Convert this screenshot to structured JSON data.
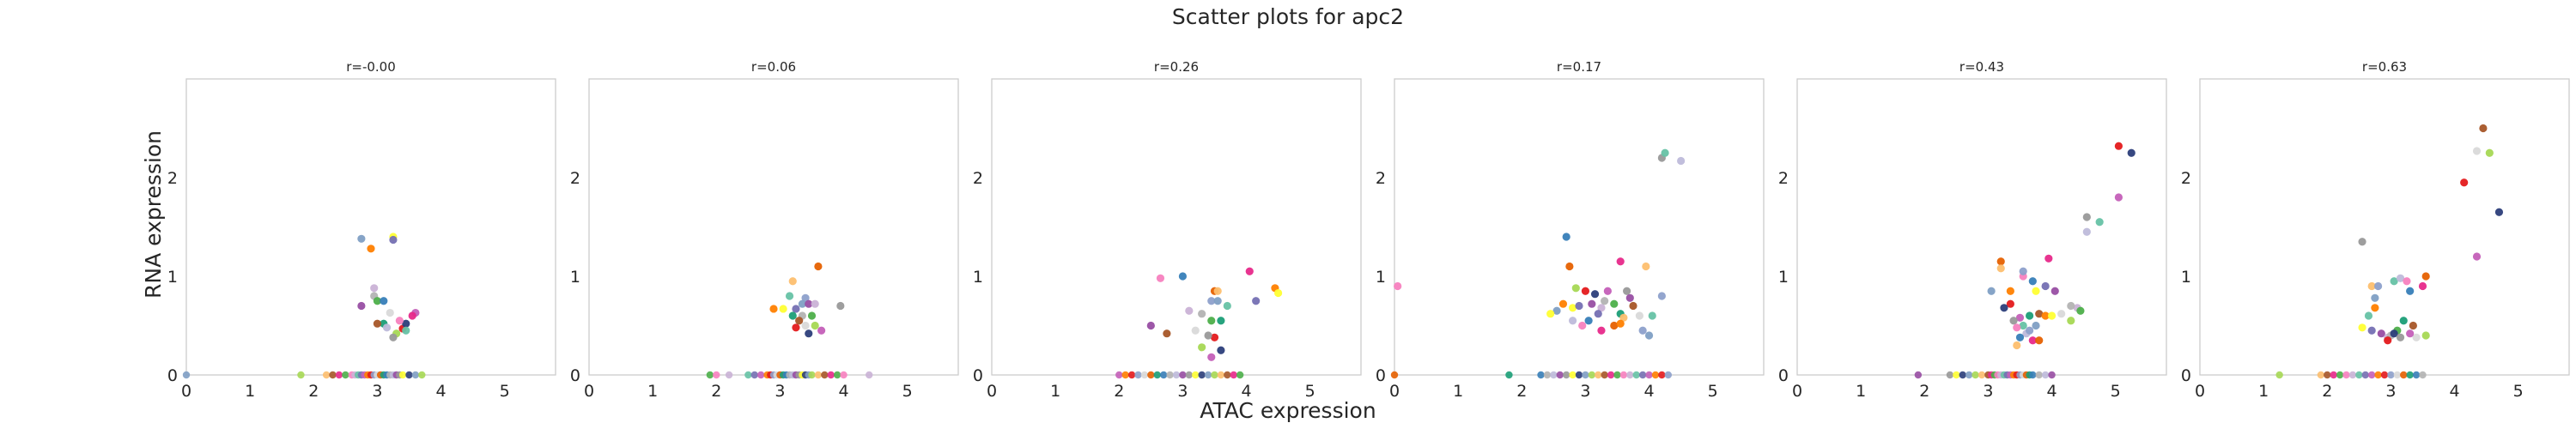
{
  "chart_data": {
    "type": "scatter",
    "title": "Scatter plots for apc2",
    "xlabel": "ATAC expression",
    "ylabel": "RNA expression",
    "xlim": [
      0,
      5.8
    ],
    "ylim": [
      0,
      3.0
    ],
    "xticks": [
      0,
      1,
      2,
      3,
      4,
      5
    ],
    "yticks": [
      0,
      1,
      2
    ],
    "grid": false,
    "palette": [
      "#7f9fc4",
      "#4daf4a",
      "#c45fb8",
      "#e66101",
      "#984ea3",
      "#a6d854",
      "#f781bf",
      "#ff7f00",
      "#1b9e77",
      "#999999",
      "#fdbf6f",
      "#cab2d6",
      "#e41a1c",
      "#377eb8",
      "#ffff33",
      "#a65628",
      "#66c2a5",
      "#8da0cb",
      "#b3b3b3",
      "#2c3e7a",
      "#e7298a",
      "#7570b3",
      "#d9d9d9",
      "#bebada"
    ],
    "panels": [
      {
        "title": "r=-0.00",
        "points": [
          [
            2.75,
            1.38
          ],
          [
            2.9,
            1.28
          ],
          [
            3.25,
            1.4
          ],
          [
            3.25,
            1.37
          ],
          [
            2.75,
            0.7
          ],
          [
            2.95,
            0.88
          ],
          [
            2.95,
            0.8
          ],
          [
            3.0,
            0.75
          ],
          [
            3.1,
            0.52
          ],
          [
            3.0,
            0.52
          ],
          [
            3.2,
            0.63
          ],
          [
            3.3,
            0.42
          ],
          [
            3.4,
            0.47
          ],
          [
            3.45,
            0.52
          ],
          [
            3.6,
            0.63
          ],
          [
            3.25,
            0.38
          ],
          [
            3.45,
            0.45
          ],
          [
            3.15,
            0.48
          ],
          [
            3.35,
            0.55
          ],
          [
            3.1,
            0.75
          ],
          [
            3.55,
            0.6
          ]
        ],
        "zeros": [
          0.0,
          1.8,
          2.2,
          2.3,
          2.4,
          2.5,
          2.6,
          2.65,
          2.7,
          2.75,
          2.8,
          2.85,
          2.9,
          2.95,
          3.0,
          3.05,
          3.1,
          3.15,
          3.2,
          3.25,
          3.3,
          3.35,
          3.4,
          3.5,
          3.6,
          3.7
        ]
      },
      {
        "title": "r=0.06",
        "points": [
          [
            3.6,
            1.1
          ],
          [
            3.2,
            0.95
          ],
          [
            3.4,
            0.78
          ],
          [
            3.35,
            0.72
          ],
          [
            2.9,
            0.67
          ],
          [
            3.05,
            0.67
          ],
          [
            3.25,
            0.67
          ],
          [
            3.45,
            0.72
          ],
          [
            3.55,
            0.72
          ],
          [
            3.35,
            0.6
          ],
          [
            3.5,
            0.6
          ],
          [
            3.2,
            0.6
          ],
          [
            3.3,
            0.55
          ],
          [
            3.4,
            0.5
          ],
          [
            3.55,
            0.5
          ],
          [
            3.25,
            0.48
          ],
          [
            3.45,
            0.42
          ],
          [
            3.65,
            0.45
          ],
          [
            3.95,
            0.7
          ],
          [
            3.15,
            0.8
          ]
        ],
        "zeros": [
          1.9,
          2.0,
          2.2,
          2.5,
          2.6,
          2.7,
          2.8,
          2.85,
          2.9,
          2.95,
          3.0,
          3.05,
          3.1,
          3.15,
          3.2,
          3.25,
          3.3,
          3.35,
          3.4,
          3.45,
          3.5,
          3.6,
          3.7,
          3.8,
          3.9,
          4.0,
          4.4
        ]
      },
      {
        "title": "r=0.26",
        "points": [
          [
            2.65,
            0.98
          ],
          [
            3.0,
            1.0
          ],
          [
            4.05,
            1.05
          ],
          [
            3.5,
            0.85
          ],
          [
            3.55,
            0.85
          ],
          [
            3.45,
            0.75
          ],
          [
            3.55,
            0.75
          ],
          [
            4.45,
            0.88
          ],
          [
            4.5,
            0.83
          ],
          [
            4.15,
            0.75
          ],
          [
            2.5,
            0.5
          ],
          [
            3.1,
            0.65
          ],
          [
            3.3,
            0.62
          ],
          [
            3.45,
            0.55
          ],
          [
            3.6,
            0.55
          ],
          [
            2.75,
            0.42
          ],
          [
            3.2,
            0.45
          ],
          [
            3.3,
            0.28
          ],
          [
            3.5,
            0.38
          ],
          [
            3.6,
            0.25
          ],
          [
            3.45,
            0.18
          ],
          [
            3.4,
            0.4
          ],
          [
            3.7,
            0.7
          ]
        ],
        "zeros": [
          2.0,
          2.1,
          2.2,
          2.3,
          2.4,
          2.5,
          2.6,
          2.7,
          2.8,
          2.9,
          3.0,
          3.1,
          3.2,
          3.3,
          3.4,
          3.5,
          3.6,
          3.7,
          3.8,
          3.9
        ]
      },
      {
        "title": "r=0.17",
        "points": [
          [
            4.2,
            2.2
          ],
          [
            4.25,
            2.25
          ],
          [
            4.5,
            2.17
          ],
          [
            0.05,
            0.9
          ],
          [
            2.7,
            1.4
          ],
          [
            3.55,
            1.15
          ],
          [
            2.75,
            1.1
          ],
          [
            3.95,
            1.1
          ],
          [
            4.2,
            0.8
          ],
          [
            2.55,
            0.65
          ],
          [
            2.65,
            0.72
          ],
          [
            2.8,
            0.68
          ],
          [
            2.9,
            0.7
          ],
          [
            3.1,
            0.72
          ],
          [
            3.25,
            0.68
          ],
          [
            3.3,
            0.75
          ],
          [
            3.45,
            0.72
          ],
          [
            3.55,
            0.62
          ],
          [
            3.75,
            0.7
          ],
          [
            3.85,
            0.6
          ],
          [
            2.85,
            0.88
          ],
          [
            3.0,
            0.85
          ],
          [
            3.15,
            0.82
          ],
          [
            3.35,
            0.85
          ],
          [
            3.65,
            0.85
          ],
          [
            4.05,
            0.6
          ],
          [
            2.8,
            0.55
          ],
          [
            2.95,
            0.5
          ],
          [
            3.05,
            0.55
          ],
          [
            3.25,
            0.45
          ],
          [
            3.45,
            0.5
          ],
          [
            3.6,
            0.58
          ],
          [
            3.9,
            0.45
          ],
          [
            4.0,
            0.4
          ],
          [
            3.55,
            0.52
          ],
          [
            2.45,
            0.62
          ],
          [
            3.2,
            0.62
          ],
          [
            3.7,
            0.78
          ]
        ],
        "zeros": [
          0.0,
          1.8,
          2.3,
          2.4,
          2.5,
          2.6,
          2.7,
          2.8,
          2.9,
          3.0,
          3.1,
          3.2,
          3.3,
          3.4,
          3.5,
          3.6,
          3.7,
          3.8,
          3.9,
          4.0,
          4.1,
          4.2,
          4.3
        ]
      },
      {
        "title": "r=0.43",
        "points": [
          [
            5.05,
            2.32
          ],
          [
            5.25,
            2.25
          ],
          [
            5.05,
            1.8
          ],
          [
            4.55,
            1.6
          ],
          [
            4.75,
            1.55
          ],
          [
            4.55,
            1.45
          ],
          [
            3.55,
            1.0
          ],
          [
            3.7,
            0.95
          ],
          [
            3.95,
            1.18
          ],
          [
            3.2,
            1.15
          ],
          [
            3.2,
            1.08
          ],
          [
            3.55,
            1.05
          ],
          [
            3.05,
            0.85
          ],
          [
            3.35,
            0.85
          ],
          [
            3.75,
            0.85
          ],
          [
            3.9,
            0.9
          ],
          [
            4.05,
            0.85
          ],
          [
            4.4,
            0.68
          ],
          [
            4.3,
            0.7
          ],
          [
            4.45,
            0.65
          ],
          [
            3.65,
            0.6
          ],
          [
            3.8,
            0.62
          ],
          [
            4.15,
            0.62
          ],
          [
            4.3,
            0.55
          ],
          [
            3.35,
            0.72
          ],
          [
            3.25,
            0.68
          ],
          [
            3.5,
            0.58
          ],
          [
            3.4,
            0.55
          ],
          [
            3.55,
            0.5
          ],
          [
            3.6,
            0.42
          ],
          [
            3.45,
            0.48
          ],
          [
            3.5,
            0.38
          ],
          [
            3.7,
            0.35
          ],
          [
            3.8,
            0.35
          ],
          [
            3.45,
            0.3
          ],
          [
            3.65,
            0.45
          ],
          [
            3.75,
            0.5
          ],
          [
            3.9,
            0.6
          ],
          [
            4.0,
            0.6
          ]
        ],
        "zeros": [
          1.9,
          2.4,
          2.5,
          2.6,
          2.7,
          2.8,
          2.9,
          3.0,
          3.05,
          3.1,
          3.15,
          3.2,
          3.25,
          3.3,
          3.35,
          3.4,
          3.45,
          3.5,
          3.55,
          3.6,
          3.65,
          3.7,
          3.8,
          3.9,
          4.0
        ]
      },
      {
        "title": "r=0.63",
        "points": [
          [
            4.45,
            2.5
          ],
          [
            4.35,
            2.27
          ],
          [
            4.55,
            2.25
          ],
          [
            4.15,
            1.95
          ],
          [
            4.7,
            1.65
          ],
          [
            4.35,
            1.2
          ],
          [
            2.55,
            1.35
          ],
          [
            3.05,
            0.95
          ],
          [
            3.15,
            0.98
          ],
          [
            3.25,
            0.95
          ],
          [
            3.3,
            0.85
          ],
          [
            3.5,
            0.9
          ],
          [
            3.55,
            1.0
          ],
          [
            2.7,
            0.9
          ],
          [
            2.8,
            0.9
          ],
          [
            2.75,
            0.78
          ],
          [
            2.75,
            0.68
          ],
          [
            2.55,
            0.48
          ],
          [
            2.7,
            0.45
          ],
          [
            2.85,
            0.42
          ],
          [
            2.95,
            0.38
          ],
          [
            3.0,
            0.4
          ],
          [
            3.1,
            0.45
          ],
          [
            3.2,
            0.55
          ],
          [
            3.35,
            0.5
          ],
          [
            3.4,
            0.38
          ],
          [
            3.55,
            0.4
          ],
          [
            2.95,
            0.35
          ],
          [
            3.05,
            0.42
          ],
          [
            3.3,
            0.42
          ],
          [
            3.15,
            0.38
          ],
          [
            2.65,
            0.6
          ]
        ],
        "zeros": [
          1.25,
          1.9,
          2.0,
          2.1,
          2.2,
          2.3,
          2.4,
          2.5,
          2.6,
          2.7,
          2.8,
          2.9,
          3.0,
          3.1,
          3.2,
          3.3,
          3.4,
          3.5
        ]
      }
    ]
  }
}
